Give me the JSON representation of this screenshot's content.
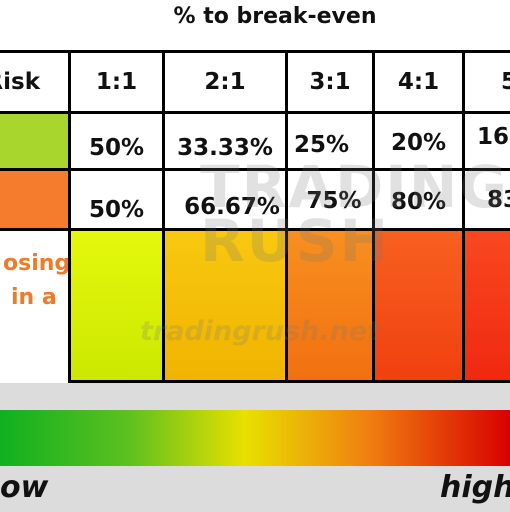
{
  "title": "% to break-even",
  "table": {
    "header": [
      "Risk",
      "1:1",
      "2:1",
      "3:1",
      "4:1",
      "5"
    ],
    "rows": [
      [
        "50%",
        "33.33%",
        "25%",
        "20%",
        "16"
      ],
      [
        "50%",
        "66.67%",
        "75%",
        "80%",
        "83"
      ]
    ],
    "side_label": [
      "osing",
      "in a"
    ]
  },
  "watermark": {
    "logo": "TRADING RUSH",
    "url": "tradingrush.net"
  },
  "scale": {
    "low": "ow",
    "high": "high"
  }
}
